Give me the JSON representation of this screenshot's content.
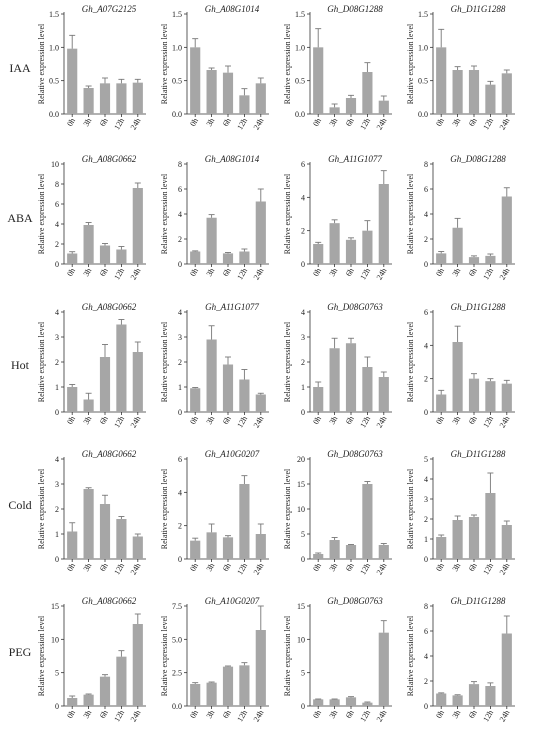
{
  "row_labels": [
    "IAA",
    "ABA",
    "Hot",
    "Cold",
    "PEG"
  ],
  "chart_data": [
    {
      "row": "IAA",
      "type": "bar",
      "title": "Gh_A07G2125",
      "ylabel": "Relative expression level",
      "categories": [
        "0h",
        "3h",
        "6h",
        "12h",
        "24h"
      ],
      "values": [
        0.98,
        0.39,
        0.46,
        0.46,
        0.47
      ],
      "errors": [
        0.2,
        0.03,
        0.08,
        0.06,
        0.05
      ],
      "ylim": [
        0,
        1.5
      ],
      "yticks": [
        "0.0",
        "0.5",
        "1.0",
        "1.5"
      ],
      "color": "#a6a6a6"
    },
    {
      "row": "IAA",
      "type": "bar",
      "title": "Gh_A08G1014",
      "ylabel": "Relative expression level",
      "categories": [
        "0h",
        "3h",
        "6h",
        "12h",
        "24h"
      ],
      "values": [
        1.0,
        0.66,
        0.62,
        0.28,
        0.46
      ],
      "errors": [
        0.13,
        0.03,
        0.1,
        0.1,
        0.08
      ],
      "ylim": [
        0,
        1.5
      ],
      "yticks": [
        "0.0",
        "0.5",
        "1.0",
        "1.5"
      ],
      "color": "#a6a6a6"
    },
    {
      "row": "IAA",
      "type": "bar",
      "title": "Gh_D08G1288",
      "ylabel": "Relative expression level",
      "categories": [
        "0h",
        "3h",
        "6h",
        "12h",
        "24h"
      ],
      "values": [
        1.0,
        0.1,
        0.24,
        0.63,
        0.2
      ],
      "errors": [
        0.28,
        0.05,
        0.04,
        0.14,
        0.07
      ],
      "ylim": [
        0,
        1.5
      ],
      "yticks": [
        "0.0",
        "0.5",
        "1.0",
        "1.5"
      ],
      "color": "#a6a6a6"
    },
    {
      "row": "IAA",
      "type": "bar",
      "title": "Gh_D11G1288",
      "ylabel": "Relative expression level",
      "categories": [
        "0h",
        "3h",
        "6h",
        "12h",
        "24h"
      ],
      "values": [
        1.0,
        0.66,
        0.66,
        0.44,
        0.61
      ],
      "errors": [
        0.27,
        0.05,
        0.06,
        0.05,
        0.05
      ],
      "ylim": [
        0,
        1.5
      ],
      "yticks": [
        "0.0",
        "0.5",
        "1.0",
        "1.5"
      ],
      "color": "#a6a6a6"
    },
    {
      "row": "ABA",
      "type": "bar",
      "title": "Gh_A08G0662",
      "ylabel": "Relative expression level",
      "categories": [
        "0h",
        "3h",
        "6h",
        "12h",
        "24h"
      ],
      "values": [
        1.05,
        3.9,
        1.85,
        1.45,
        7.6
      ],
      "errors": [
        0.18,
        0.25,
        0.2,
        0.3,
        0.5
      ],
      "ylim": [
        0,
        10
      ],
      "yticks": [
        "0",
        "2",
        "4",
        "6",
        "8",
        "10"
      ],
      "color": "#a6a6a6"
    },
    {
      "row": "ABA",
      "type": "bar",
      "title": "Gh_A08G1014",
      "ylabel": "Relative expression level",
      "categories": [
        "0h",
        "3h",
        "6h",
        "12h",
        "24h"
      ],
      "values": [
        1.0,
        3.7,
        0.85,
        1.0,
        5.0
      ],
      "errors": [
        0.05,
        0.25,
        0.07,
        0.2,
        1.0
      ],
      "ylim": [
        0,
        8
      ],
      "yticks": [
        "0",
        "2",
        "4",
        "6",
        "8"
      ],
      "color": "#a6a6a6"
    },
    {
      "row": "ABA",
      "type": "bar",
      "title": "Gh_A11G1077",
      "ylabel": "Relative expression level",
      "categories": [
        "0h",
        "3h",
        "6h",
        "12h",
        "24h"
      ],
      "values": [
        1.2,
        2.45,
        1.45,
        2.0,
        4.8
      ],
      "errors": [
        0.1,
        0.2,
        0.12,
        0.6,
        0.8
      ],
      "ylim": [
        0,
        6
      ],
      "yticks": [
        "0",
        "2",
        "4",
        "6"
      ],
      "color": "#a6a6a6"
    },
    {
      "row": "ABA",
      "type": "bar",
      "title": "Gh_D08G1288",
      "ylabel": "Relative expression level",
      "categories": [
        "0h",
        "3h",
        "6h",
        "12h",
        "24h"
      ],
      "values": [
        0.85,
        2.9,
        0.55,
        0.65,
        5.4
      ],
      "errors": [
        0.15,
        0.75,
        0.1,
        0.15,
        0.7
      ],
      "ylim": [
        0,
        8
      ],
      "yticks": [
        "0",
        "2",
        "4",
        "6",
        "8"
      ],
      "color": "#a6a6a6"
    },
    {
      "row": "Hot",
      "type": "bar",
      "title": "Gh_A08G0662",
      "ylabel": "Relative expression level",
      "categories": [
        "0h",
        "3h",
        "6h",
        "12h",
        "24h"
      ],
      "values": [
        1.0,
        0.5,
        2.2,
        3.5,
        2.4
      ],
      "errors": [
        0.1,
        0.25,
        0.5,
        0.2,
        0.4
      ],
      "ylim": [
        0,
        4
      ],
      "yticks": [
        "0",
        "1",
        "2",
        "3",
        "4"
      ],
      "color": "#a6a6a6"
    },
    {
      "row": "Hot",
      "type": "bar",
      "title": "Gh_A11G1077",
      "ylabel": "Relative expression level",
      "categories": [
        "0h",
        "3h",
        "6h",
        "12h",
        "24h"
      ],
      "values": [
        0.95,
        2.9,
        1.9,
        1.3,
        0.7
      ],
      "errors": [
        0.03,
        0.55,
        0.3,
        0.4,
        0.05
      ],
      "ylim": [
        0,
        4
      ],
      "yticks": [
        "0",
        "1",
        "2",
        "3",
        "4"
      ],
      "color": "#a6a6a6"
    },
    {
      "row": "Hot",
      "type": "bar",
      "title": "Gh_D08G0763",
      "ylabel": "Relative expression level",
      "categories": [
        "0h",
        "3h",
        "6h",
        "12h",
        "24h"
      ],
      "values": [
        1.0,
        2.55,
        2.75,
        1.8,
        1.4
      ],
      "errors": [
        0.2,
        0.4,
        0.2,
        0.4,
        0.2
      ],
      "ylim": [
        0,
        4
      ],
      "yticks": [
        "0",
        "1",
        "2",
        "3",
        "4"
      ],
      "color": "#a6a6a6"
    },
    {
      "row": "Hot",
      "type": "bar",
      "title": "Gh_D11G1288",
      "ylabel": "Relative expression level",
      "categories": [
        "0h",
        "3h",
        "6h",
        "12h",
        "24h"
      ],
      "values": [
        1.05,
        4.2,
        2.0,
        1.85,
        1.7
      ],
      "errors": [
        0.25,
        0.95,
        0.3,
        0.15,
        0.2
      ],
      "ylim": [
        0,
        6
      ],
      "yticks": [
        "0",
        "2",
        "4",
        "6"
      ],
      "color": "#a6a6a6"
    },
    {
      "row": "Cold",
      "type": "bar",
      "title": "Gh_A08G0662",
      "ylabel": "Relative expression level",
      "categories": [
        "0h",
        "3h",
        "6h",
        "12h",
        "24h"
      ],
      "values": [
        1.1,
        2.8,
        2.2,
        1.6,
        0.9
      ],
      "errors": [
        0.35,
        0.05,
        0.35,
        0.1,
        0.1
      ],
      "ylim": [
        0,
        4
      ],
      "yticks": [
        "0",
        "1",
        "2",
        "3",
        "4"
      ],
      "color": "#a6a6a6"
    },
    {
      "row": "Cold",
      "type": "bar",
      "title": "Gh_A10G0207",
      "ylabel": "Relative expression level",
      "categories": [
        "0h",
        "3h",
        "6h",
        "12h",
        "24h"
      ],
      "values": [
        1.1,
        1.6,
        1.3,
        4.5,
        1.5
      ],
      "errors": [
        0.15,
        0.5,
        0.1,
        0.5,
        0.6
      ],
      "ylim": [
        0,
        6
      ],
      "yticks": [
        "0",
        "2",
        "4",
        "6"
      ],
      "color": "#a6a6a6"
    },
    {
      "row": "Cold",
      "type": "bar",
      "title": "Gh_D08G0763",
      "ylabel": "Relative expression level",
      "categories": [
        "0h",
        "3h",
        "6h",
        "12h",
        "24h"
      ],
      "values": [
        1.0,
        3.8,
        2.8,
        15.0,
        2.8
      ],
      "errors": [
        0.2,
        0.5,
        0.1,
        0.5,
        0.3
      ],
      "ylim": [
        0,
        20
      ],
      "yticks": [
        "0",
        "5",
        "10",
        "15",
        "20"
      ],
      "color": "#a6a6a6"
    },
    {
      "row": "Cold",
      "type": "bar",
      "title": "Gh_D11G1288",
      "ylabel": "Relative expression level",
      "categories": [
        "0h",
        "3h",
        "6h",
        "12h",
        "24h"
      ],
      "values": [
        1.1,
        1.95,
        2.1,
        3.3,
        1.7
      ],
      "errors": [
        0.1,
        0.2,
        0.1,
        1.0,
        0.2
      ],
      "ylim": [
        0,
        5
      ],
      "yticks": [
        "0",
        "1",
        "2",
        "3",
        "4",
        "5"
      ],
      "color": "#a6a6a6"
    },
    {
      "row": "PEG",
      "type": "bar",
      "title": "Gh_A08G0662",
      "ylabel": "Relative expression level",
      "categories": [
        "0h",
        "3h",
        "6h",
        "12h",
        "24h"
      ],
      "values": [
        1.2,
        1.7,
        4.4,
        7.4,
        12.3
      ],
      "errors": [
        0.3,
        0.1,
        0.3,
        0.9,
        1.5
      ],
      "ylim": [
        0,
        15
      ],
      "yticks": [
        "0",
        "5",
        "10",
        "15"
      ],
      "color": "#a6a6a6"
    },
    {
      "row": "PEG",
      "type": "bar",
      "title": "Gh_A10G0207",
      "ylabel": "Relative expression level",
      "categories": [
        "0h",
        "3h",
        "6h",
        "12h",
        "24h"
      ],
      "values": [
        1.65,
        1.75,
        2.95,
        3.05,
        5.7
      ],
      "errors": [
        0.1,
        0.05,
        0.05,
        0.2,
        1.8
      ],
      "ylim": [
        0,
        7.5
      ],
      "yticks": [
        "0.0",
        "2.5",
        "5.0",
        "7.5"
      ],
      "color": "#a6a6a6"
    },
    {
      "row": "PEG",
      "type": "bar",
      "title": "Gh_D08G0763",
      "ylabel": "Relative expression level",
      "categories": [
        "0h",
        "3h",
        "6h",
        "12h",
        "24h"
      ],
      "values": [
        1.0,
        1.0,
        1.3,
        0.5,
        11.0
      ],
      "errors": [
        0.05,
        0.05,
        0.1,
        0.1,
        1.8
      ],
      "ylim": [
        0,
        15
      ],
      "yticks": [
        "0",
        "5",
        "10",
        "15"
      ],
      "color": "#a6a6a6"
    },
    {
      "row": "PEG",
      "type": "bar",
      "title": "Gh_D11G1288",
      "ylabel": "Relative expression level",
      "categories": [
        "0h",
        "3h",
        "6h",
        "12h",
        "24h"
      ],
      "values": [
        1.0,
        0.85,
        1.75,
        1.6,
        5.8
      ],
      "errors": [
        0.05,
        0.05,
        0.2,
        0.25,
        1.4
      ],
      "ylim": [
        0,
        8
      ],
      "yticks": [
        "0",
        "2",
        "4",
        "6",
        "8"
      ],
      "color": "#a6a6a6"
    }
  ]
}
